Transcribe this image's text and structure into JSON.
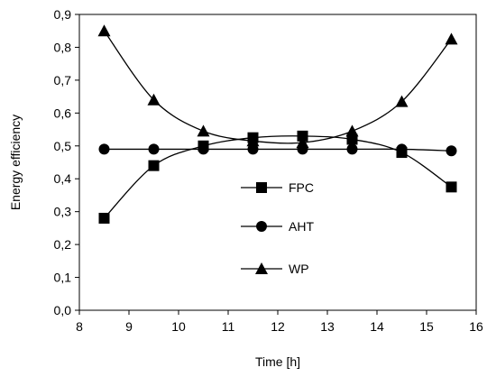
{
  "chart_data": {
    "type": "line",
    "xlabel": "Time [h]",
    "ylabel": "Energy efficiency",
    "xlim": [
      8,
      16
    ],
    "ylim": [
      0,
      0.9
    ],
    "x_ticks": [
      "8",
      "9",
      "10",
      "11",
      "12",
      "13",
      "14",
      "15",
      "16"
    ],
    "y_ticks": [
      "0,0",
      "0,1",
      "0,2",
      "0,3",
      "0,4",
      "0,5",
      "0,6",
      "0,7",
      "0,8",
      "0,9"
    ],
    "grid": false,
    "legend_position": "center",
    "x": [
      8.5,
      9.5,
      10.5,
      11.5,
      12.5,
      13.5,
      14.5,
      15.5
    ],
    "series": [
      {
        "name": "FPC",
        "marker": "square",
        "values": [
          0.28,
          0.44,
          0.5,
          0.525,
          0.53,
          0.52,
          0.48,
          0.375
        ]
      },
      {
        "name": "AHT",
        "marker": "circle",
        "values": [
          0.49,
          0.49,
          0.49,
          0.49,
          0.49,
          0.49,
          0.49,
          0.485
        ]
      },
      {
        "name": "WP",
        "marker": "triangle",
        "values": [
          0.85,
          0.64,
          0.545,
          0.515,
          0.51,
          0.545,
          0.635,
          0.825
        ]
      }
    ],
    "color": "#000000"
  }
}
